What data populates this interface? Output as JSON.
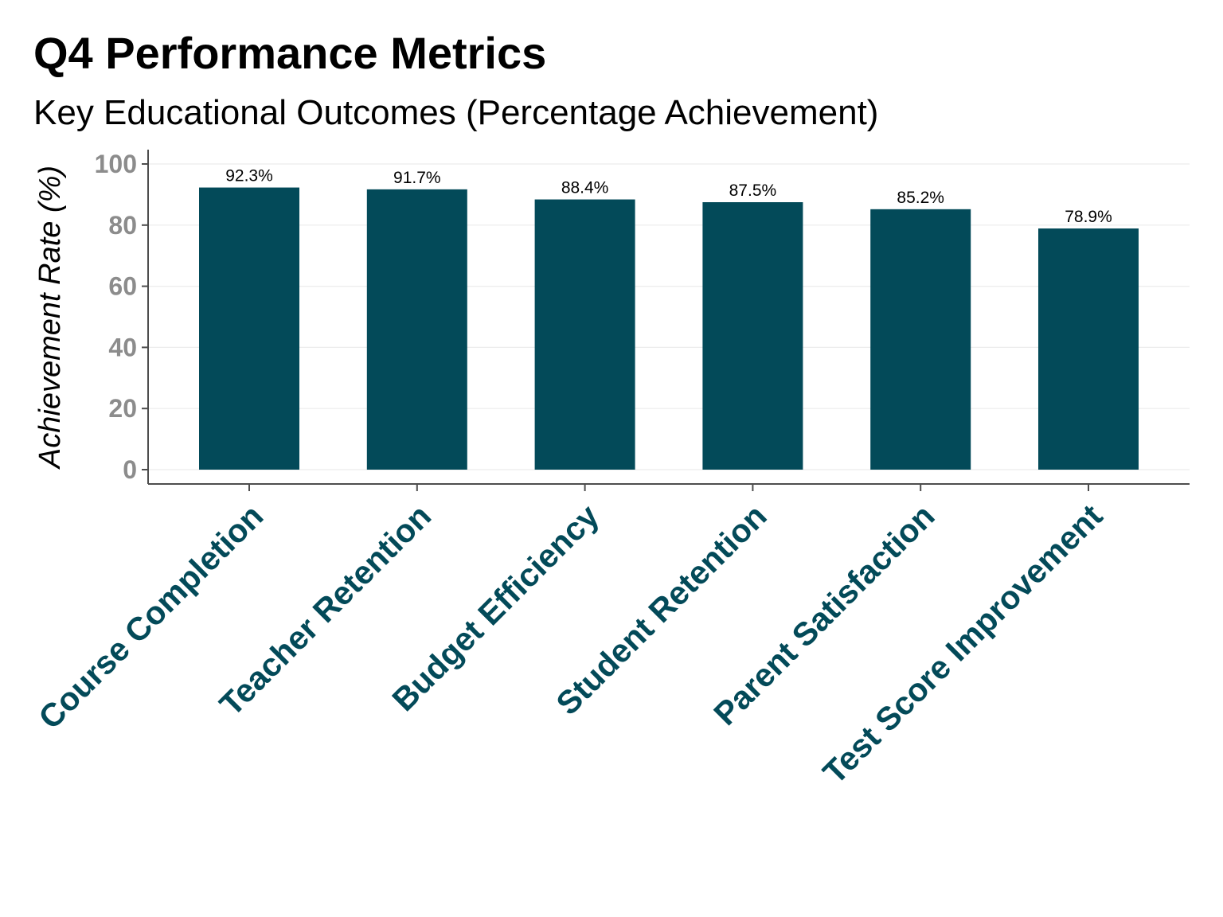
{
  "chart_data": {
    "type": "bar",
    "title": "Q4 Performance Metrics",
    "subtitle": "Key Educational Outcomes (Percentage Achievement)",
    "xlabel": "",
    "ylabel": "Achievement Rate (%)",
    "categories": [
      "Course Completion",
      "Teacher Retention",
      "Budget Efficiency",
      "Student Retention",
      "Parent Satisfaction",
      "Test Score Improvement"
    ],
    "values": [
      92.3,
      91.7,
      88.4,
      87.5,
      85.2,
      78.9
    ],
    "data_labels": [
      "92.3%",
      "91.7%",
      "88.4%",
      "87.5%",
      "85.2%",
      "78.9%"
    ],
    "yticks": [
      0,
      20,
      40,
      60,
      80,
      100
    ],
    "ytick_labels": [
      "0",
      "20",
      "40",
      "60",
      "80",
      "100"
    ],
    "ylim": [
      0,
      100
    ],
    "grid": true,
    "legend": "none"
  },
  "colors": {
    "bar": "#034a59",
    "category_label": "#034a59",
    "tick_label": "#8c8c8c",
    "grid": "#ececec",
    "axis": "#4d4d4d"
  }
}
